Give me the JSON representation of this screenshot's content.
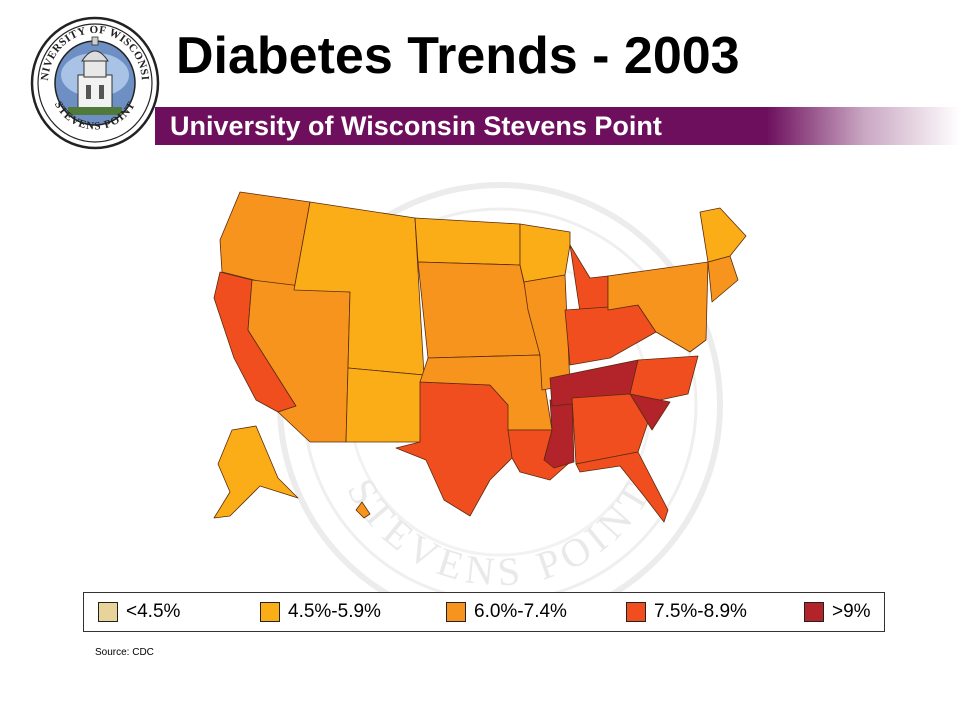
{
  "header": {
    "title": "Diabetes Trends - 2003",
    "subtitle": "University of Wisconsin Stevens Point",
    "banner_color": "#6e0f5d"
  },
  "seal": {
    "top_text": "UNIVERSITY OF WISCONSIN",
    "bottom_text": "STEVENS POINT",
    "watermark_text": "STEVENS POINT"
  },
  "legend": {
    "items": [
      {
        "label": "<4.5%",
        "color": "#e8d49a"
      },
      {
        "label": "4.5%-5.9%",
        "color": "#fbad18"
      },
      {
        "label": "6.0%-7.4%",
        "color": "#f7941d"
      },
      {
        "label": "7.5%-8.9%",
        "color": "#f04e1e"
      },
      {
        "label": ">9%",
        "color": "#b2232a"
      }
    ]
  },
  "map": {
    "regions": [
      {
        "name": "pacific-northwest",
        "cls": 2
      },
      {
        "name": "california",
        "cls": 3
      },
      {
        "name": "nevada-utah-arizona",
        "cls": 2
      },
      {
        "name": "mountain-west",
        "cls": 1
      },
      {
        "name": "new-mexico",
        "cls": 1
      },
      {
        "name": "northern-plains",
        "cls": 1
      },
      {
        "name": "central-plains",
        "cls": 2
      },
      {
        "name": "texas",
        "cls": 3
      },
      {
        "name": "oklahoma-arkansas",
        "cls": 2
      },
      {
        "name": "upper-midwest",
        "cls": 1
      },
      {
        "name": "iowa-missouri-illinois",
        "cls": 2
      },
      {
        "name": "michigan",
        "cls": 3
      },
      {
        "name": "ohio-valley",
        "cls": 3
      },
      {
        "name": "louisiana",
        "cls": 3
      },
      {
        "name": "mississippi",
        "cls": 4
      },
      {
        "name": "tennessee",
        "cls": 4
      },
      {
        "name": "alabama-georgia",
        "cls": 3
      },
      {
        "name": "south-carolina",
        "cls": 4
      },
      {
        "name": "north-carolina",
        "cls": 3
      },
      {
        "name": "florida",
        "cls": 3
      },
      {
        "name": "mid-atlantic",
        "cls": 2
      },
      {
        "name": "northeast",
        "cls": 2
      },
      {
        "name": "maine-nh-vt",
        "cls": 1
      },
      {
        "name": "alaska",
        "cls": 1
      },
      {
        "name": "hawaii",
        "cls": 2
      }
    ]
  },
  "source": "Source: CDC"
}
